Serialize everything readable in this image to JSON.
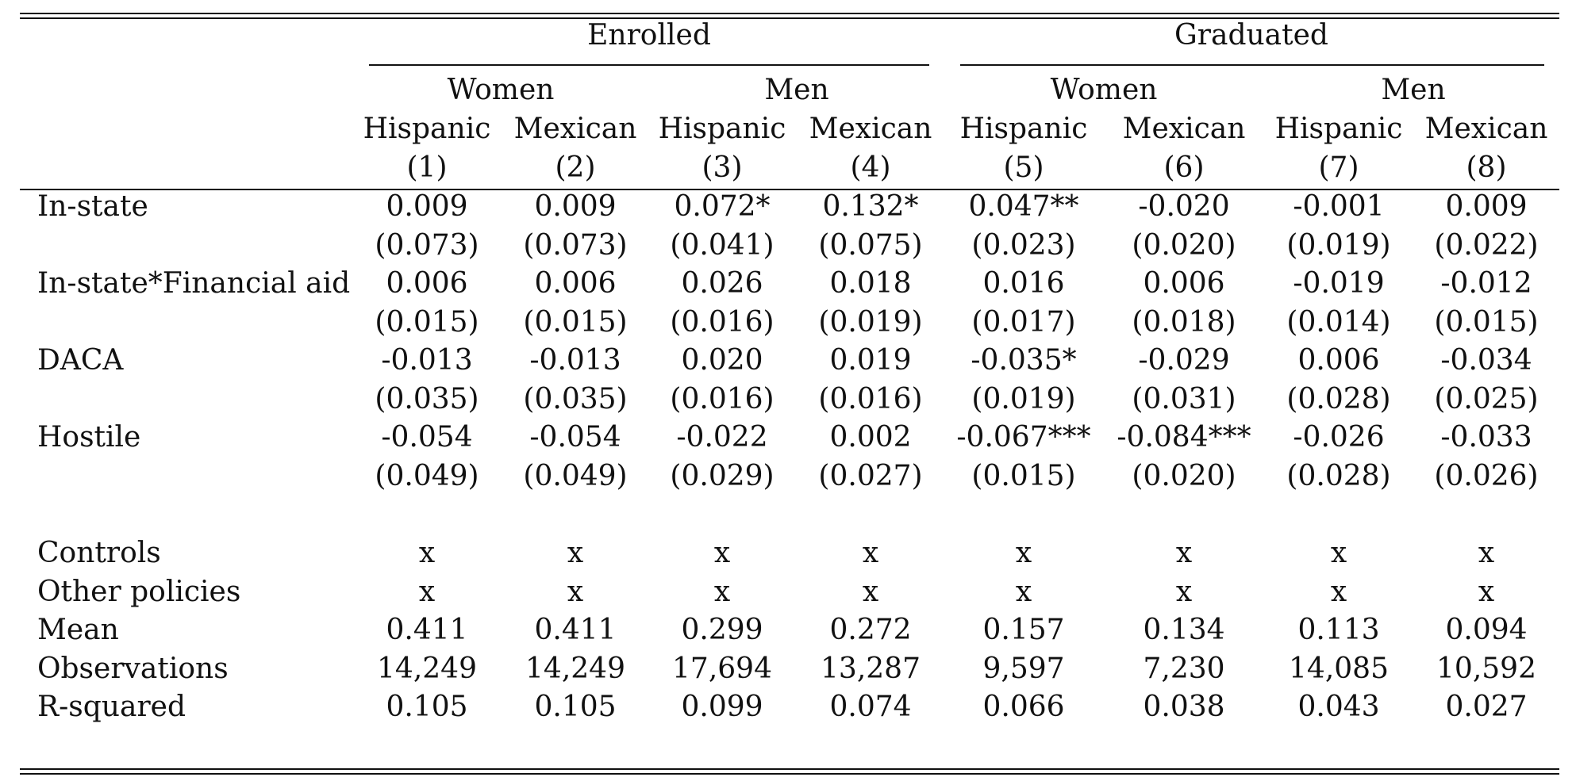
{
  "header": {
    "groups": [
      "Enrolled",
      "Graduated"
    ],
    "genders": [
      "Women",
      "Men",
      "Women",
      "Men"
    ],
    "ethnicities": [
      "Hispanic",
      "Mexican",
      "Hispanic",
      "Mexican",
      "Hispanic",
      "Mexican",
      "Hispanic",
      "Mexican"
    ],
    "column_numbers": [
      "(1)",
      "(2)",
      "(3)",
      "(4)",
      "(5)",
      "(6)",
      "(7)",
      "(8)"
    ]
  },
  "rows": [
    {
      "label": "In-state",
      "values": [
        "0.009",
        "0.009",
        "0.072*",
        "0.132*",
        "0.047**",
        "-0.020",
        "-0.001",
        "0.009"
      ]
    },
    {
      "label": "",
      "values": [
        "(0.073)",
        "(0.073)",
        "(0.041)",
        "(0.075)",
        "(0.023)",
        "(0.020)",
        "(0.019)",
        "(0.022)"
      ]
    },
    {
      "label": "In-state*Financial aid",
      "values": [
        "0.006",
        "0.006",
        "0.026",
        "0.018",
        "0.016",
        "0.006",
        "-0.019",
        "-0.012"
      ]
    },
    {
      "label": "",
      "values": [
        "(0.015)",
        "(0.015)",
        "(0.016)",
        "(0.019)",
        "(0.017)",
        "(0.018)",
        "(0.014)",
        "(0.015)"
      ]
    },
    {
      "label": "DACA",
      "values": [
        "-0.013",
        "-0.013",
        "0.020",
        "0.019",
        "-0.035*",
        "-0.029",
        "0.006",
        "-0.034"
      ]
    },
    {
      "label": "",
      "values": [
        "(0.035)",
        "(0.035)",
        "(0.016)",
        "(0.016)",
        "(0.019)",
        "(0.031)",
        "(0.028)",
        "(0.025)"
      ]
    },
    {
      "label": "Hostile",
      "values": [
        "-0.054",
        "-0.054",
        "-0.022",
        "0.002",
        "-0.067***",
        "-0.084***",
        "-0.026",
        "-0.033"
      ]
    },
    {
      "label": "",
      "values": [
        "(0.049)",
        "(0.049)",
        "(0.029)",
        "(0.027)",
        "(0.015)",
        "(0.020)",
        "(0.028)",
        "(0.026)"
      ]
    }
  ],
  "footer_rows": [
    {
      "label": "Controls",
      "values": [
        "x",
        "x",
        "x",
        "x",
        "x",
        "x",
        "x",
        "x"
      ]
    },
    {
      "label": "Other policies",
      "values": [
        "x",
        "x",
        "x",
        "x",
        "x",
        "x",
        "x",
        "x"
      ]
    },
    {
      "label": "Mean",
      "values": [
        "0.411",
        "0.411",
        "0.299",
        "0.272",
        "0.157",
        "0.134",
        "0.113",
        "0.094"
      ]
    },
    {
      "label": "Observations",
      "values": [
        "14,249",
        "14,249",
        "17,694",
        "13,287",
        "9,597",
        "7,230",
        "14,085",
        "10,592"
      ]
    },
    {
      "label": "R-squared",
      "values": [
        "0.105",
        "0.105",
        "0.099",
        "0.074",
        "0.066",
        "0.038",
        "0.043",
        "0.027"
      ]
    }
  ]
}
